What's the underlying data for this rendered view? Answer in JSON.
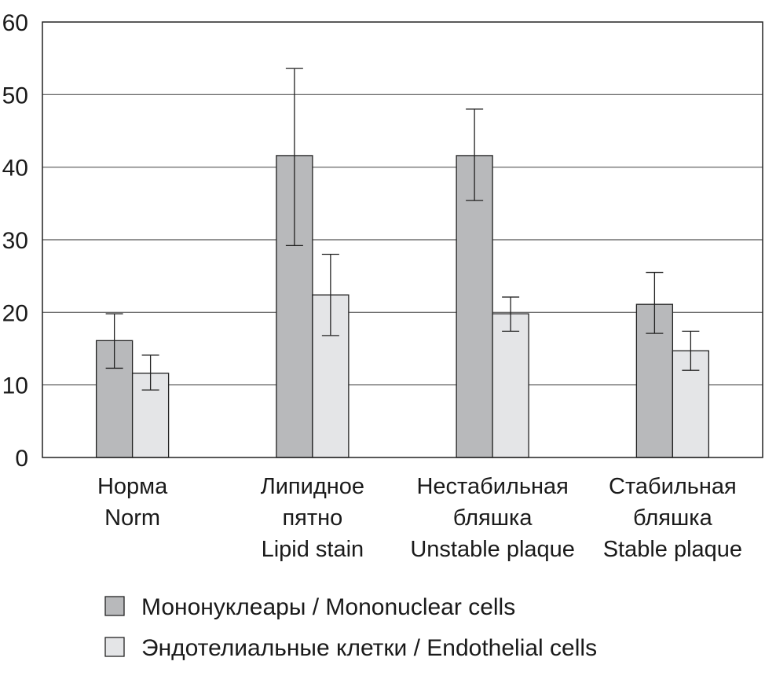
{
  "chart_data": {
    "type": "bar",
    "categories": [
      [
        "Норма",
        "Norm"
      ],
      [
        "Липидное",
        "пятно",
        "Lipid stain"
      ],
      [
        "Нестабильная",
        "бляшка",
        "Unstable plaque"
      ],
      [
        "Стабильная",
        "бляшка",
        "Stable plaque"
      ]
    ],
    "series": [
      {
        "name": "Мононуклеары / Mononuclear cells",
        "color": "#b8b9bb",
        "values": [
          16.1,
          41.6,
          41.6,
          21.1
        ],
        "err_low": [
          12.3,
          29.2,
          35.4,
          17.1
        ],
        "err_high": [
          19.8,
          53.6,
          48.0,
          25.5
        ]
      },
      {
        "name": "Эндотелиальные клетки / Endothelial cells",
        "color": "#e4e5e7",
        "values": [
          11.6,
          22.4,
          19.8,
          14.7
        ],
        "err_low": [
          9.3,
          16.8,
          17.4,
          12.0
        ],
        "err_high": [
          14.1,
          28.0,
          22.1,
          17.4
        ]
      }
    ],
    "yticks": [
      "0",
      "10",
      "20",
      "30",
      "40",
      "50",
      "60"
    ],
    "ylim": [
      0,
      60
    ],
    "grid": true,
    "legend_position": "bottom-left"
  }
}
